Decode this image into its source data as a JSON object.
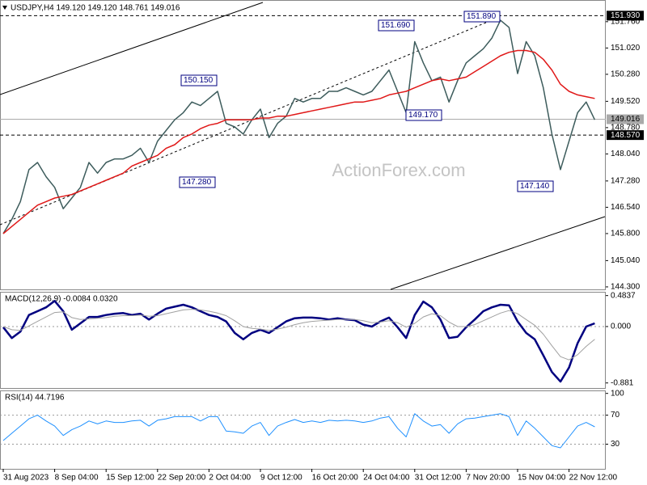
{
  "chart_data": [
    {
      "type": "line",
      "title": "USDJPY,H4 149.120 149.120 148.761 149.016",
      "watermark": "ActionForex.com",
      "ylim": [
        144.23,
        152.37
      ],
      "yticks": [
        {
          "value": 151.76,
          "label": "151.760"
        },
        {
          "value": 151.02,
          "label": "151.020"
        },
        {
          "value": 150.28,
          "label": "150.280"
        },
        {
          "value": 149.52,
          "label": "149.520"
        },
        {
          "value": 148.78,
          "label": "148.780"
        },
        {
          "value": 148.04,
          "label": "148.040"
        },
        {
          "value": 147.28,
          "label": "147.280"
        },
        {
          "value": 146.54,
          "label": "146.540"
        },
        {
          "value": 145.8,
          "label": "145.800"
        },
        {
          "value": 145.04,
          "label": "145.040"
        },
        {
          "value": 144.3,
          "label": "144.300"
        }
      ],
      "levels": [
        {
          "value": 151.93,
          "label": "151.930"
        },
        {
          "value": 148.57,
          "label": "148.570"
        }
      ],
      "last": 149.016,
      "annotations": [
        "151.890",
        "151.690",
        "150.150",
        "149.170",
        "147.280",
        "147.140"
      ],
      "series": [
        {
          "color": "#3d5c5c",
          "values": [
            145.8,
            146.2,
            146.7,
            147.6,
            147.8,
            147.4,
            147.1,
            146.5,
            146.8,
            147.1,
            147.8,
            147.5,
            147.8,
            147.9,
            147.9,
            148.0,
            148.2,
            147.8,
            148.4,
            148.7,
            149.0,
            149.2,
            149.5,
            149.4,
            149.6,
            149.8,
            148.9,
            148.8,
            148.6,
            149.0,
            149.3,
            148.5,
            148.9,
            149.1,
            149.6,
            149.5,
            149.6,
            149.6,
            149.8,
            149.8,
            149.9,
            149.8,
            149.7,
            149.8,
            150.1,
            150.4,
            149.8,
            149.2,
            151.2,
            150.6,
            150.1,
            150.2,
            149.5,
            150.1,
            150.6,
            150.8,
            151.0,
            151.3,
            151.8,
            151.6,
            150.3,
            151.2,
            150.8,
            149.9,
            148.6,
            147.6,
            148.4,
            149.2,
            149.5,
            149.0
          ]
        },
        {
          "color": "#e01818",
          "values": [
            145.8,
            146.0,
            146.2,
            146.4,
            146.6,
            146.7,
            146.8,
            146.85,
            146.9,
            147.0,
            147.1,
            147.2,
            147.3,
            147.4,
            147.5,
            147.7,
            147.8,
            147.9,
            148.0,
            148.2,
            148.3,
            148.5,
            148.6,
            148.75,
            148.85,
            148.9,
            149.0,
            149.0,
            149.0,
            149.0,
            149.05,
            149.05,
            149.1,
            149.1,
            149.15,
            149.2,
            149.25,
            149.3,
            149.35,
            149.4,
            149.45,
            149.5,
            149.5,
            149.55,
            149.6,
            149.7,
            149.75,
            149.8,
            149.9,
            150.0,
            150.1,
            150.15,
            150.1,
            150.15,
            150.2,
            150.35,
            150.5,
            150.65,
            150.8,
            150.9,
            150.95,
            150.95,
            150.9,
            150.7,
            150.4,
            150.0,
            149.8,
            149.7,
            149.65,
            149.6
          ]
        }
      ]
    },
    {
      "type": "line",
      "title": "MACD(12,26,9) -0.0084 0.0320",
      "ylim": [
        -0.96,
        0.53
      ],
      "yticks": [
        0.4837,
        {
          "value": 0,
          "label": "0.000"
        },
        -0.881
      ],
      "levels": [
        0
      ],
      "series": [
        {
          "color": "#000080",
          "width": 2.5,
          "values": [
            -0.01,
            -0.18,
            -0.08,
            0.18,
            0.24,
            0.3,
            0.4,
            0.24,
            -0.05,
            0.05,
            0.15,
            0.15,
            0.18,
            0.2,
            0.21,
            0.18,
            0.2,
            0.11,
            0.2,
            0.28,
            0.31,
            0.34,
            0.3,
            0.24,
            0.18,
            0.15,
            0.08,
            -0.1,
            -0.2,
            -0.1,
            -0.05,
            -0.1,
            -0.01,
            0.08,
            0.13,
            0.14,
            0.14,
            0.13,
            0.11,
            0.13,
            0.11,
            0.1,
            0.03,
            0.0,
            0.08,
            0.14,
            -0.01,
            -0.18,
            0.18,
            0.39,
            0.3,
            0.11,
            -0.18,
            -0.16,
            -0.01,
            0.11,
            0.24,
            0.3,
            0.34,
            0.33,
            0.08,
            -0.1,
            -0.2,
            -0.45,
            -0.71,
            -0.86,
            -0.64,
            -0.26,
            0.0,
            0.05
          ]
        },
        {
          "color": "#a0a0a0",
          "width": 1,
          "values": [
            0.0,
            -0.05,
            -0.06,
            0.01,
            0.08,
            0.15,
            0.22,
            0.23,
            0.14,
            0.11,
            0.12,
            0.13,
            0.14,
            0.16,
            0.17,
            0.17,
            0.18,
            0.16,
            0.17,
            0.2,
            0.23,
            0.26,
            0.27,
            0.26,
            0.24,
            0.21,
            0.17,
            0.09,
            0.0,
            -0.03,
            -0.04,
            -0.06,
            -0.04,
            -0.01,
            0.03,
            0.06,
            0.08,
            0.09,
            0.1,
            0.11,
            0.11,
            0.11,
            0.09,
            0.06,
            0.07,
            0.09,
            0.06,
            -0.01,
            0.05,
            0.15,
            0.2,
            0.17,
            0.07,
            0.0,
            0.0,
            0.03,
            0.09,
            0.15,
            0.21,
            0.25,
            0.2,
            0.11,
            0.02,
            -0.12,
            -0.3,
            -0.47,
            -0.52,
            -0.44,
            -0.31,
            -0.2
          ]
        }
      ]
    },
    {
      "type": "line",
      "title": "RSI(14) 44.7196",
      "ylim": [
        -4,
        103
      ],
      "yticks": [
        100,
        70,
        30
      ],
      "levels": [
        70,
        30
      ],
      "categories": [
        "31 Aug 2023",
        null,
        null,
        null,
        null,
        null,
        "8 Sep 04:00",
        null,
        null,
        null,
        null,
        null,
        "15 Sep 12:00",
        null,
        null,
        null,
        null,
        null,
        "22 Sep 20:00",
        null,
        null,
        null,
        null,
        null,
        "2 Oct 04:00",
        null,
        null,
        null,
        null,
        null,
        "9 Oct 12:00",
        null,
        null,
        null,
        null,
        null,
        "16 Oct 20:00",
        null,
        null,
        null,
        null,
        null,
        "24 Oct 04:00",
        null,
        null,
        null,
        null,
        null,
        "31 Oct 12:00",
        null,
        null,
        null,
        null,
        null,
        "7 Nov 20:00",
        null,
        null,
        null,
        null,
        null,
        "15 Nov 04:00",
        null,
        null,
        null,
        null,
        null,
        "22 Nov 12:00",
        null,
        null,
        null
      ],
      "series": [
        {
          "color": "#1e90ff",
          "width": 1,
          "values": [
            35,
            45,
            55,
            65,
            70,
            62,
            55,
            42,
            50,
            55,
            62,
            58,
            62,
            60,
            60,
            62,
            63,
            55,
            63,
            65,
            68,
            68,
            68,
            62,
            68,
            68,
            48,
            47,
            45,
            55,
            60,
            42,
            55,
            60,
            64,
            60,
            62,
            60,
            63,
            62,
            63,
            62,
            60,
            62,
            66,
            68,
            52,
            40,
            72,
            62,
            55,
            57,
            45,
            58,
            65,
            66,
            68,
            70,
            72,
            68,
            42,
            62,
            52,
            40,
            28,
            25,
            40,
            55,
            60,
            54
          ]
        }
      ]
    }
  ]
}
